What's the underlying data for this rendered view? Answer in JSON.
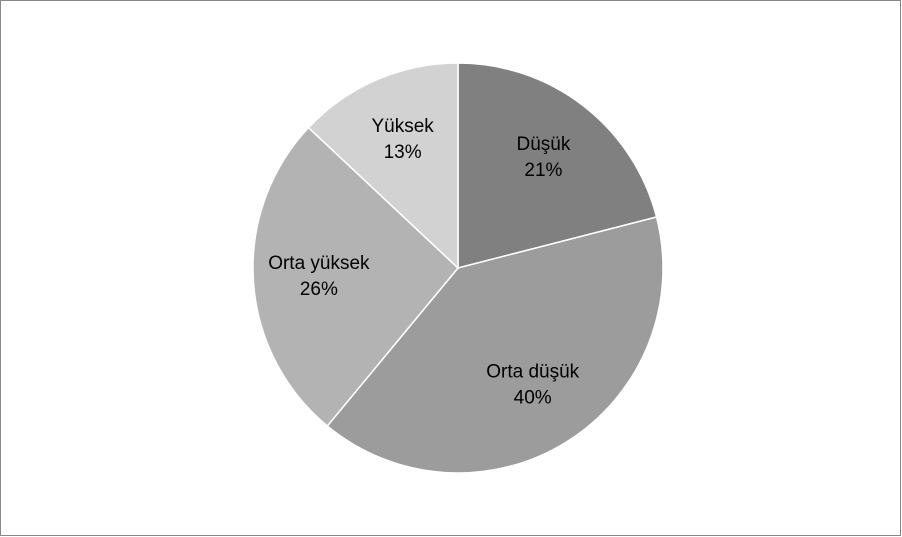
{
  "chart_data": {
    "type": "pie",
    "categories": [
      "Düşük",
      "Orta düşük",
      "Orta yüksek",
      "Yüksek"
    ],
    "values": [
      21,
      40,
      26,
      13
    ],
    "value_labels": [
      "21%",
      "40%",
      "26%",
      "13%"
    ],
    "colors": [
      "#808080",
      "#9c9c9c",
      "#b3b3b3",
      "#d2d2d2"
    ]
  }
}
